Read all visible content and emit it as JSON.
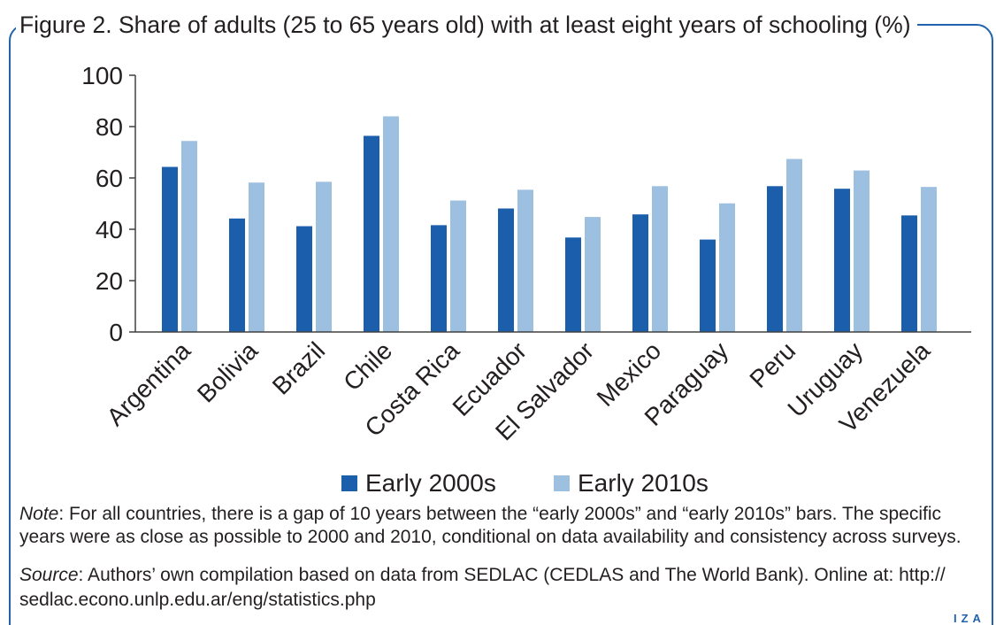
{
  "figure": {
    "note": {
      "label": "Note",
      "lines": [
        ": For all countries, there is a gap of 10 years between the “early 2000s” and “early 2010s” bars. The specific",
        "years were as close as possible to 2000 and 2010, conditional on data availability and consistency across surveys."
      ]
    },
    "source": {
      "label": "Source",
      "lines": [
        ": Authors’ own compilation based on data from SEDLAC (CEDLAS and The World Bank). Online at: http://",
        "sedlac.econo.unlp.edu.ar/eng/statistics.php"
      ]
    },
    "logo": "IZA",
    "frame_color": "#2163ad"
  },
  "chart_data": {
    "type": "bar",
    "title": "Figure 2. Share of adults (25 to 65 years old) with at least eight years of schooling (%)",
    "xlabel": "",
    "ylabel": "",
    "categories": [
      "Argentina",
      "Bolivia",
      "Brazil",
      "Chile",
      "Costa Rica",
      "Ecuador",
      "El Salvador",
      "Mexico",
      "Paraguay",
      "Peru",
      "Uruguay",
      "Venezuela"
    ],
    "series": [
      {
        "name": "Early 2000s",
        "color": "#1b5fac",
        "values": [
          64.3,
          44.2,
          41.2,
          76.4,
          41.6,
          48.1,
          36.8,
          45.8,
          36.0,
          56.8,
          55.8,
          45.4
        ]
      },
      {
        "name": "Early 2010s",
        "color": "#9dc0e1",
        "values": [
          74.4,
          58.2,
          58.5,
          84.0,
          51.2,
          55.4,
          44.8,
          56.8,
          50.1,
          67.4,
          62.9,
          56.5
        ]
      }
    ],
    "ylim": [
      0,
      100
    ],
    "yticks": [
      0,
      20,
      40,
      60,
      80,
      100
    ],
    "grid": false,
    "legend": "bottom-center"
  }
}
